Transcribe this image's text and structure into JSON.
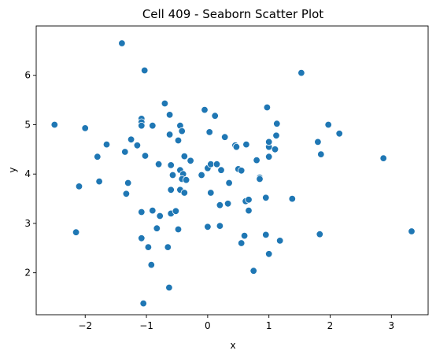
{
  "chart_data": {
    "type": "scatter",
    "title": "Cell 409 - Seaborn Scatter Plot",
    "xlabel": "x",
    "ylabel": "y",
    "xlim": [
      -2.8,
      3.6
    ],
    "ylim": [
      1.15,
      7.0
    ],
    "xticks": [
      -2,
      -1,
      0,
      1,
      2,
      3
    ],
    "yticks": [
      2,
      3,
      4,
      5,
      6
    ],
    "grid": false,
    "color": "#1f77b4",
    "series": [
      {
        "points": [
          [
            -1.4,
            6.65
          ],
          [
            -1.03,
            6.1
          ],
          [
            1.53,
            6.05
          ],
          [
            -2.5,
            5.0
          ],
          [
            -2.0,
            4.93
          ],
          [
            -1.65,
            4.6
          ],
          [
            -1.8,
            4.35
          ],
          [
            -1.35,
            4.45
          ],
          [
            -1.25,
            4.7
          ],
          [
            -1.15,
            4.58
          ],
          [
            -1.08,
            5.12
          ],
          [
            -1.08,
            5.05
          ],
          [
            -1.08,
            4.98
          ],
          [
            -1.02,
            4.37
          ],
          [
            -0.9,
            4.98
          ],
          [
            -0.7,
            5.43
          ],
          [
            -0.62,
            5.2
          ],
          [
            -0.62,
            4.8
          ],
          [
            -0.6,
            4.18
          ],
          [
            -0.8,
            4.2
          ],
          [
            -0.57,
            3.98
          ],
          [
            -0.48,
            4.68
          ],
          [
            -0.45,
            4.98
          ],
          [
            -0.42,
            4.87
          ],
          [
            -0.45,
            4.08
          ],
          [
            -0.38,
            4.36
          ],
          [
            -0.4,
            4.0
          ],
          [
            -0.42,
            3.9
          ],
          [
            -0.35,
            3.88
          ],
          [
            -0.28,
            4.27
          ],
          [
            -0.1,
            3.98
          ],
          [
            -0.05,
            5.3
          ],
          [
            0.03,
            4.85
          ],
          [
            0.0,
            4.12
          ],
          [
            0.05,
            4.2
          ],
          [
            0.12,
            5.18
          ],
          [
            0.15,
            4.2
          ],
          [
            0.22,
            4.08
          ],
          [
            0.28,
            4.75
          ],
          [
            0.45,
            4.58
          ],
          [
            0.47,
            4.55
          ],
          [
            0.5,
            4.1
          ],
          [
            0.55,
            4.07
          ],
          [
            0.63,
            4.6
          ],
          [
            0.35,
            3.82
          ],
          [
            0.62,
            3.45
          ],
          [
            0.67,
            3.48
          ],
          [
            0.67,
            3.26
          ],
          [
            0.8,
            4.28
          ],
          [
            0.85,
            3.93
          ],
          [
            0.85,
            3.9
          ],
          [
            0.97,
            5.35
          ],
          [
            1.0,
            4.55
          ],
          [
            1.0,
            4.65
          ],
          [
            1.0,
            4.35
          ],
          [
            1.1,
            4.5
          ],
          [
            1.12,
            4.78
          ],
          [
            1.13,
            5.02
          ],
          [
            1.8,
            4.65
          ],
          [
            1.85,
            4.4
          ],
          [
            1.97,
            5.0
          ],
          [
            2.15,
            4.82
          ],
          [
            2.87,
            4.32
          ],
          [
            -2.1,
            3.75
          ],
          [
            -1.77,
            3.85
          ],
          [
            -1.3,
            3.82
          ],
          [
            -1.33,
            3.6
          ],
          [
            -1.08,
            3.23
          ],
          [
            -0.9,
            3.26
          ],
          [
            -0.83,
            2.9
          ],
          [
            -0.78,
            3.15
          ],
          [
            -0.6,
            3.2
          ],
          [
            -0.6,
            3.68
          ],
          [
            -0.52,
            3.25
          ],
          [
            -0.45,
            3.68
          ],
          [
            -0.38,
            3.62
          ],
          [
            -0.48,
            2.88
          ],
          [
            0.05,
            3.62
          ],
          [
            0.0,
            2.93
          ],
          [
            0.2,
            3.37
          ],
          [
            0.33,
            3.4
          ],
          [
            0.2,
            2.95
          ],
          [
            0.55,
            2.6
          ],
          [
            0.6,
            2.75
          ],
          [
            0.95,
            3.52
          ],
          [
            0.95,
            2.77
          ],
          [
            1.0,
            2.38
          ],
          [
            1.18,
            2.65
          ],
          [
            1.38,
            3.5
          ],
          [
            1.83,
            2.78
          ],
          [
            3.33,
            2.84
          ],
          [
            -2.15,
            2.82
          ],
          [
            -1.08,
            2.7
          ],
          [
            -0.97,
            2.52
          ],
          [
            -0.92,
            2.16
          ],
          [
            -0.65,
            2.52
          ],
          [
            -0.63,
            1.7
          ],
          [
            0.75,
            2.04
          ],
          [
            -1.05,
            1.38
          ]
        ]
      }
    ]
  }
}
